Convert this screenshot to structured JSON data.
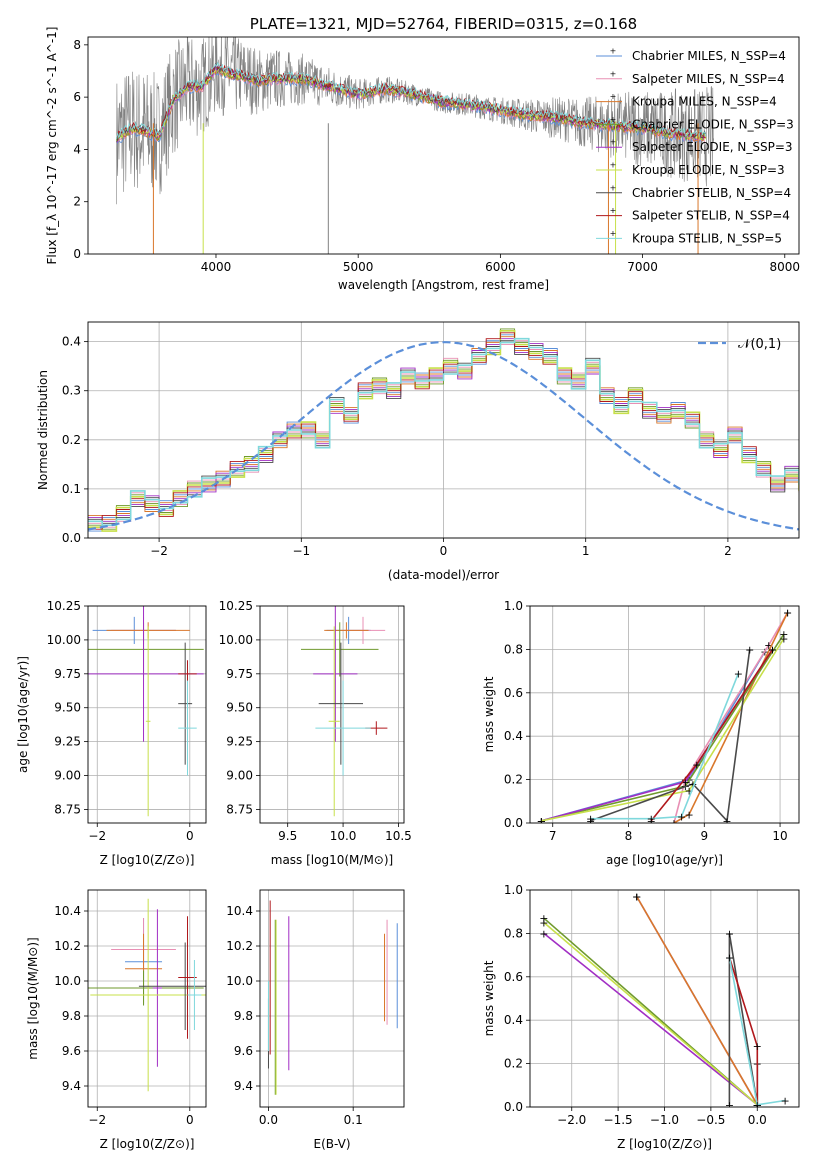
{
  "colors": {
    "miles_chabrier": "#5b8fd9",
    "miles_salpeter": "#e88fb4",
    "miles_kroupa": "#d9772b",
    "elodie_chabrier": "#6f9a2e",
    "elodie_salpeter": "#a12ec4",
    "elodie_kroupa": "#c7e04a",
    "stelib_chabrier": "#4a4a4a",
    "stelib_salpeter": "#b0181c",
    "stelib_kroupa": "#7fd8dc",
    "observed": "#808080",
    "gaussian": "#5b8fd9"
  },
  "chart_data": [
    {
      "type": "line",
      "title": "PLATE=1321, MJD=52764, FIBERID=0315, z=0.168",
      "xlabel": "wavelength [Angstrom, rest frame]",
      "ylabel": "Flux [f_λ 10^-17 erg cm^-2 s^-1 A^-1]",
      "xlim": [
        3100,
        8100
      ],
      "ylim": [
        0,
        8.3
      ],
      "xticks": [
        "4000",
        "5000",
        "6000",
        "7000",
        "8000"
      ],
      "yticks": [
        "0",
        "2",
        "4",
        "6",
        "8"
      ],
      "legend_position": "upper-right",
      "legend": [
        {
          "label": "Chabrier MILES, N_SSP=4",
          "color_key": "miles_chabrier"
        },
        {
          "label": "Salpeter MILES, N_SSP=4",
          "color_key": "miles_salpeter"
        },
        {
          "label": "Kroupa MILES, N_SSP=4",
          "color_key": "miles_kroupa"
        },
        {
          "label": "Chabrier ELODIE, N_SSP=3",
          "color_key": "elodie_chabrier"
        },
        {
          "label": "Salpeter ELODIE, N_SSP=3",
          "color_key": "elodie_salpeter"
        },
        {
          "label": "Kroupa ELODIE, N_SSP=3",
          "color_key": "elodie_kroupa"
        },
        {
          "label": "Chabrier STELIB, N_SSP=4",
          "color_key": "stelib_chabrier"
        },
        {
          "label": "Salpeter STELIB, N_SSP=4",
          "color_key": "stelib_salpeter"
        },
        {
          "label": "Kroupa STELIB, N_SSP=5",
          "color_key": "stelib_kroupa"
        }
      ],
      "continuum_model": {
        "x": [
          3300,
          3400,
          3500,
          3600,
          3700,
          3800,
          3900,
          4000,
          4100,
          4200,
          4300,
          4400,
          4600,
          4800,
          5000,
          5200,
          5400,
          5600,
          5800,
          6000,
          6200,
          6400,
          6600,
          6800,
          7000,
          7200,
          7400
        ],
        "y": [
          4.4,
          4.8,
          4.7,
          4.5,
          5.9,
          6.4,
          6.4,
          7.1,
          6.9,
          6.8,
          6.6,
          6.7,
          6.7,
          6.4,
          6.1,
          6.3,
          6.1,
          5.8,
          5.7,
          5.5,
          5.3,
          5.2,
          5.0,
          4.9,
          4.8,
          4.6,
          4.5
        ]
      },
      "observed_noise_envelope": {
        "x": [
          3500,
          3700,
          4000,
          4300,
          4600,
          5000,
          5500,
          6000,
          6500,
          7000,
          7500
        ],
        "halfwidth": [
          2.5,
          2.2,
          1.8,
          1.3,
          1.0,
          0.6,
          0.4,
          0.5,
          0.9,
          1.5,
          2.0
        ]
      }
    },
    {
      "type": "bar",
      "xlabel": "(data-model)/error",
      "ylabel": "Normed distribution",
      "xlim": [
        -2.5,
        2.5
      ],
      "ylim": [
        0,
        0.44
      ],
      "xticks": [
        "−2",
        "−1",
        "0",
        "1",
        "2"
      ],
      "yticks": [
        "0.0",
        "0.1",
        "0.2",
        "0.3",
        "0.4"
      ],
      "legend": [
        {
          "label": "𝒩(0,1)"
        }
      ],
      "bin_width": 0.1,
      "bin_start": -2.5,
      "histogram_values": [
        0.03,
        0.03,
        0.05,
        0.08,
        0.07,
        0.06,
        0.08,
        0.1,
        0.11,
        0.12,
        0.14,
        0.15,
        0.17,
        0.2,
        0.22,
        0.22,
        0.2,
        0.27,
        0.25,
        0.3,
        0.31,
        0.3,
        0.33,
        0.32,
        0.33,
        0.35,
        0.34,
        0.37,
        0.39,
        0.41,
        0.39,
        0.38,
        0.37,
        0.33,
        0.32,
        0.35,
        0.29,
        0.27,
        0.29,
        0.26,
        0.25,
        0.26,
        0.24,
        0.2,
        0.18,
        0.21,
        0.17,
        0.14,
        0.11,
        0.13,
        0.11,
        0.1,
        0.08,
        0.07,
        0.08,
        0.07,
        0.06,
        0.05,
        0.04,
        0.05
      ]
    },
    {
      "type": "scatter",
      "xlabel": "Z [log10(Z/Z⊙)]",
      "ylabel": "age [log10(age/yr)]",
      "xlim": [
        -2.2,
        0.35
      ],
      "ylim": [
        8.65,
        10.25
      ],
      "xticks": [
        "−2",
        "0"
      ],
      "yticks": [
        "8.75",
        "9.00",
        "9.25",
        "9.50",
        "9.75",
        "10.00",
        "10.25"
      ],
      "errorbars": [
        {
          "color_key": "miles_chabrier",
          "x": -1.2,
          "y": 10.07,
          "xerr": 0.9,
          "yerr": 0.1
        },
        {
          "color_key": "miles_salpeter",
          "x": -1.0,
          "y": 10.07,
          "xerr": 0.7,
          "yerr": 0.1
        },
        {
          "color_key": "miles_kroupa",
          "x": -0.9,
          "y": 10.07,
          "xerr": 0.9,
          "yerr": 0.06
        },
        {
          "color_key": "elodie_chabrier",
          "x": -1.0,
          "y": 9.93,
          "xerr": 1.3,
          "yerr": 0.2
        },
        {
          "color_key": "elodie_salpeter",
          "x": -1.0,
          "y": 9.75,
          "xerr": 1.3,
          "yerr": 0.5
        },
        {
          "color_key": "elodie_kroupa",
          "x": -0.9,
          "y": 9.4,
          "xerr": 0.05,
          "yerr": 0.7
        },
        {
          "color_key": "stelib_chabrier",
          "x": -0.1,
          "y": 9.53,
          "xerr": 0.15,
          "yerr": 0.45
        },
        {
          "color_key": "stelib_salpeter",
          "x": -0.05,
          "y": 9.75,
          "xerr": 0.2,
          "yerr": 0.1
        },
        {
          "color_key": "stelib_kroupa",
          "x": -0.05,
          "y": 9.35,
          "xerr": 0.2,
          "yerr": 0.35
        }
      ]
    },
    {
      "type": "scatter",
      "xlabel": "mass [log10(M/M⊙)]",
      "ylabel": "",
      "xlim": [
        9.25,
        10.55
      ],
      "ylim": [
        8.65,
        10.25
      ],
      "xticks": [
        "9.5",
        "10.0",
        "10.5"
      ],
      "yticks": [
        "8.75",
        "9.00",
        "9.25",
        "9.50",
        "9.75",
        "10.00",
        "10.25"
      ],
      "errorbars": [
        {
          "color_key": "miles_chabrier",
          "x": 10.05,
          "y": 10.07,
          "xerr": 0.2,
          "yerr": 0.1
        },
        {
          "color_key": "miles_salpeter",
          "x": 10.18,
          "y": 10.07,
          "xerr": 0.2,
          "yerr": 0.1
        },
        {
          "color_key": "miles_kroupa",
          "x": 10.03,
          "y": 10.07,
          "xerr": 0.2,
          "yerr": 0.06
        },
        {
          "color_key": "elodie_chabrier",
          "x": 9.97,
          "y": 9.93,
          "xerr": 0.35,
          "yerr": 0.2
        },
        {
          "color_key": "elodie_salpeter",
          "x": 9.93,
          "y": 9.75,
          "xerr": 0.2,
          "yerr": 0.5
        },
        {
          "color_key": "elodie_kroupa",
          "x": 9.92,
          "y": 9.4,
          "xerr": 0.05,
          "yerr": 0.7
        },
        {
          "color_key": "stelib_chabrier",
          "x": 9.98,
          "y": 9.53,
          "xerr": 0.2,
          "yerr": 0.45
        },
        {
          "color_key": "stelib_salpeter",
          "x": 10.3,
          "y": 9.35,
          "xerr": 0.1,
          "yerr": 0.05
        },
        {
          "color_key": "stelib_kroupa",
          "x": 10.0,
          "y": 9.35,
          "xerr": 0.25,
          "yerr": 0.35
        }
      ]
    },
    {
      "type": "line",
      "xlabel": "age [log10(age/yr)]",
      "ylabel": "mass weight",
      "xlim": [
        6.7,
        10.25
      ],
      "ylim": [
        0,
        1.0
      ],
      "xticks": [
        "7",
        "8",
        "9",
        "10"
      ],
      "yticks": [
        "0.0",
        "0.2",
        "0.4",
        "0.6",
        "0.8",
        "1.0"
      ],
      "series": [
        {
          "color_key": "miles_chabrier",
          "x": [
            6.85,
            8.8,
            9.8
          ],
          "y": [
            0.01,
            0.2,
            0.79
          ]
        },
        {
          "color_key": "miles_salpeter",
          "x": [
            8.6,
            8.75,
            9.85,
            10.1
          ],
          "y": [
            0.0,
            0.2,
            0.82,
            0.97
          ]
        },
        {
          "color_key": "miles_kroupa",
          "x": [
            8.6,
            8.8,
            10.1
          ],
          "y": [
            0.0,
            0.04,
            0.97
          ]
        },
        {
          "color_key": "elodie_chabrier",
          "x": [
            6.85,
            8.75,
            10.05
          ],
          "y": [
            0.01,
            0.17,
            0.87
          ]
        },
        {
          "color_key": "elodie_salpeter",
          "x": [
            6.85,
            8.75,
            9.9
          ],
          "y": [
            0.01,
            0.19,
            0.8
          ]
        },
        {
          "color_key": "elodie_kroupa",
          "x": [
            6.85,
            8.8,
            10.05
          ],
          "y": [
            0.01,
            0.15,
            0.85
          ]
        },
        {
          "color_key": "stelib_chabrier",
          "x": [
            7.5,
            8.85,
            9.3,
            9.6
          ],
          "y": [
            0.01,
            0.18,
            0.01,
            0.8
          ]
        },
        {
          "color_key": "stelib_salpeter",
          "x": [
            8.3,
            8.9,
            9.9
          ],
          "y": [
            0.01,
            0.27,
            0.8
          ]
        },
        {
          "color_key": "stelib_kroupa",
          "x": [
            7.5,
            8.3,
            8.7,
            9.45
          ],
          "y": [
            0.02,
            0.02,
            0.03,
            0.69
          ]
        }
      ]
    },
    {
      "type": "scatter",
      "xlabel": "Z [log10(Z/Z⊙)]",
      "ylabel": "mass [log10(M/M⊙)]",
      "xlim": [
        -2.2,
        0.35
      ],
      "ylim": [
        9.28,
        10.52
      ],
      "xticks": [
        "−2",
        "0"
      ],
      "yticks": [
        "9.4",
        "9.6",
        "9.8",
        "10.0",
        "10.2",
        "10.4"
      ],
      "errorbars": [
        {
          "color_key": "miles_chabrier",
          "x": -1.0,
          "y": 10.11,
          "xerr": 0.4,
          "yerr": 0.25
        },
        {
          "color_key": "miles_salpeter",
          "x": -1.0,
          "y": 10.18,
          "xerr": 0.7,
          "yerr": 0.18
        },
        {
          "color_key": "miles_kroupa",
          "x": -1.0,
          "y": 10.07,
          "xerr": 0.4,
          "yerr": 0.2
        },
        {
          "color_key": "elodie_chabrier",
          "x": -1.0,
          "y": 9.96,
          "xerr": 1.3,
          "yerr": 0.1
        },
        {
          "color_key": "elodie_salpeter",
          "x": -0.7,
          "y": 9.96,
          "xerr": 0.1,
          "yerr": 0.45
        },
        {
          "color_key": "elodie_kroupa",
          "x": -0.9,
          "y": 9.92,
          "xerr": 1.25,
          "yerr": 0.55
        },
        {
          "color_key": "stelib_chabrier",
          "x": -0.1,
          "y": 9.97,
          "xerr": 1.0,
          "yerr": 0.25
        },
        {
          "color_key": "stelib_salpeter",
          "x": -0.05,
          "y": 10.02,
          "xerr": 0.2,
          "yerr": 0.35
        },
        {
          "color_key": "stelib_kroupa",
          "x": 0.1,
          "y": 9.92,
          "xerr": 0.15,
          "yerr": 0.2
        }
      ]
    },
    {
      "type": "scatter",
      "xlabel": "E(B-V)",
      "ylabel": "",
      "xlim": [
        -0.01,
        0.16
      ],
      "ylim": [
        9.28,
        10.52
      ],
      "xticks": [
        "0.0",
        "0.1"
      ],
      "yticks": [
        "9.4",
        "9.6",
        "9.8",
        "10.0",
        "10.2",
        "10.4"
      ],
      "errorbars": [
        {
          "color_key": "miles_chabrier",
          "x": 0.152,
          "y": 10.03,
          "xerr": 0,
          "yerr": 0.3
        },
        {
          "color_key": "miles_salpeter",
          "x": 0.14,
          "y": 10.05,
          "xerr": 0,
          "yerr": 0.3
        },
        {
          "color_key": "miles_kroupa",
          "x": 0.137,
          "y": 10.02,
          "xerr": 0,
          "yerr": 0.25
        },
        {
          "color_key": "elodie_chabrier",
          "x": 0.008,
          "y": 9.85,
          "xerr": 0,
          "yerr": 0.5
        },
        {
          "color_key": "elodie_salpeter",
          "x": 0.024,
          "y": 9.93,
          "xerr": 0,
          "yerr": 0.44
        },
        {
          "color_key": "elodie_kroupa",
          "x": 0.009,
          "y": 9.85,
          "xerr": 0,
          "yerr": 0.5
        },
        {
          "color_key": "stelib_chabrier",
          "x": 0.0,
          "y": 9.7,
          "xerr": 0,
          "yerr": 0.2
        },
        {
          "color_key": "stelib_salpeter",
          "x": 0.002,
          "y": 10.02,
          "xerr": 0,
          "yerr": 0.44
        },
        {
          "color_key": "stelib_kroupa",
          "x": 0.0,
          "y": 9.8,
          "xerr": 0,
          "yerr": 0.2
        }
      ]
    },
    {
      "type": "line",
      "xlabel": "Z [log10(Z/Z⊙)]",
      "ylabel": "mass weight",
      "xlim": [
        -2.45,
        0.45
      ],
      "ylim": [
        0,
        1.0
      ],
      "xticks": [
        "−2.0",
        "−1.5",
        "−1.0",
        "−0.5",
        "0.0"
      ],
      "yticks": [
        "0.0",
        "0.2",
        "0.4",
        "0.6",
        "0.8",
        "1.0"
      ],
      "series": [
        {
          "color_key": "miles_chabrier",
          "x": [
            -1.3,
            0.0
          ],
          "y": [
            0.97,
            0.01
          ]
        },
        {
          "color_key": "miles_salpeter",
          "x": [
            -1.3,
            0.0
          ],
          "y": [
            0.97,
            0.01
          ]
        },
        {
          "color_key": "miles_kroupa",
          "x": [
            -1.3,
            0.0
          ],
          "y": [
            0.97,
            0.01
          ]
        },
        {
          "color_key": "elodie_chabrier",
          "x": [
            -2.3,
            0.0
          ],
          "y": [
            0.87,
            0.01
          ]
        },
        {
          "color_key": "elodie_salpeter",
          "x": [
            -2.3,
            0.0
          ],
          "y": [
            0.8,
            0.01
          ]
        },
        {
          "color_key": "elodie_kroupa",
          "x": [
            -2.3,
            0.0
          ],
          "y": [
            0.85,
            0.01
          ]
        },
        {
          "color_key": "stelib_chabrier",
          "x": [
            -0.3,
            -0.3,
            0.0,
            0.0
          ],
          "y": [
            0.01,
            0.8,
            0.01,
            0.2
          ]
        },
        {
          "color_key": "stelib_salpeter",
          "x": [
            -0.3,
            0.0,
            0.0
          ],
          "y": [
            0.69,
            0.28,
            0.01
          ]
        },
        {
          "color_key": "stelib_kroupa",
          "x": [
            -0.3,
            0.0,
            0.3
          ],
          "y": [
            0.69,
            0.01,
            0.03
          ]
        }
      ]
    }
  ]
}
